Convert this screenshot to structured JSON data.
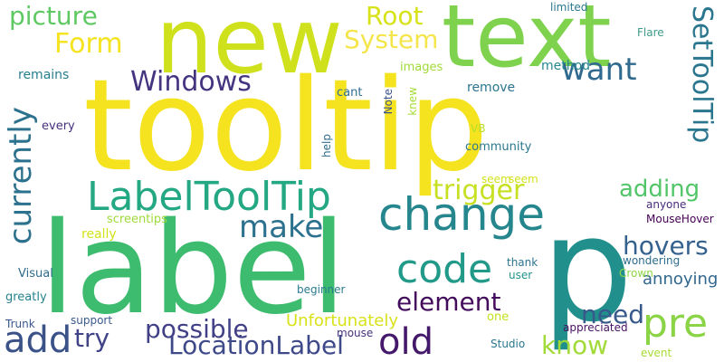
{
  "words": [
    {
      "text": "tooltip",
      "color": "#f5e31f",
      "vertical": false
    },
    {
      "text": "label",
      "color": "#3dbb6e",
      "vertical": false
    },
    {
      "text": "new",
      "color": "#cfe11c",
      "vertical": false
    },
    {
      "text": "text",
      "color": "#7ed24d",
      "vertical": false
    },
    {
      "text": "p",
      "color": "#21908d",
      "vertical": false
    },
    {
      "text": "change",
      "color": "#25878d",
      "vertical": false
    },
    {
      "text": "LabelToolTip",
      "color": "#23a883",
      "vertical": false
    },
    {
      "text": "code",
      "color": "#229a8a",
      "vertical": false
    },
    {
      "text": "pre",
      "color": "#8ad445",
      "vertical": false
    },
    {
      "text": "add",
      "color": "#3b5289",
      "vertical": false
    },
    {
      "text": "old",
      "color": "#44186b",
      "vertical": false
    },
    {
      "text": "want",
      "color": "#306a8e",
      "vertical": false
    },
    {
      "text": "Windows",
      "color": "#453581",
      "vertical": false
    },
    {
      "text": "Form",
      "color": "#f5e31f",
      "vertical": false
    },
    {
      "text": "picture",
      "color": "#5ec962",
      "vertical": false
    },
    {
      "text": "System",
      "color": "#f3e54a",
      "vertical": false
    },
    {
      "text": "Root",
      "color": "#d8e219",
      "vertical": false
    },
    {
      "text": "make",
      "color": "#2c728e",
      "vertical": false
    },
    {
      "text": "trigger",
      "color": "#c7e021",
      "vertical": false
    },
    {
      "text": "LocationLabel",
      "color": "#3e4989",
      "vertical": false
    },
    {
      "text": "possible",
      "color": "#424086",
      "vertical": false
    },
    {
      "text": "element",
      "color": "#440c5c",
      "vertical": false
    },
    {
      "text": "adding",
      "color": "#52c569",
      "vertical": false
    },
    {
      "text": "hovers",
      "color": "#34618d",
      "vertical": false
    },
    {
      "text": "need",
      "color": "#38598c",
      "vertical": false
    },
    {
      "text": "know",
      "color": "#a2da37",
      "vertical": false
    },
    {
      "text": "try",
      "color": "#414387",
      "vertical": false
    },
    {
      "text": "annoying",
      "color": "#31678e",
      "vertical": false
    },
    {
      "text": "SetToolTip",
      "color": "#2a768e",
      "vertical": true,
      "up": false
    },
    {
      "text": "currently",
      "color": "#2c718e",
      "vertical": true,
      "up": true
    },
    {
      "text": "Unfortunately",
      "color": "#d8e219",
      "vertical": false
    },
    {
      "text": "remains",
      "color": "#277f8e",
      "vertical": false
    },
    {
      "text": "remove",
      "color": "#2b748e",
      "vertical": false
    },
    {
      "text": "cant",
      "color": "#2e6e8e",
      "vertical": false
    },
    {
      "text": "images",
      "color": "#a0da39",
      "vertical": false
    },
    {
      "text": "every",
      "color": "#46307e",
      "vertical": false
    },
    {
      "text": "community",
      "color": "#2a778e",
      "vertical": false
    },
    {
      "text": "seem",
      "color": "#d2e21b",
      "vertical": false
    },
    {
      "text": "Flare",
      "color": "#3f9b89",
      "vertical": false
    },
    {
      "text": "limited",
      "color": "#2a788e",
      "vertical": false
    },
    {
      "text": "screentips",
      "color": "#9fda3a",
      "vertical": false
    },
    {
      "text": "really",
      "color": "#d2e21b",
      "vertical": false
    },
    {
      "text": "Visual",
      "color": "#2f6c8e",
      "vertical": false
    },
    {
      "text": "greatly",
      "color": "#26838e",
      "vertical": false
    },
    {
      "text": "support",
      "color": "#38598c",
      "vertical": false
    },
    {
      "text": "Trunk",
      "color": "#39568c",
      "vertical": false
    },
    {
      "text": "beginner",
      "color": "#297b8e",
      "vertical": false
    },
    {
      "text": "mouse",
      "color": "#46327e",
      "vertical": false
    },
    {
      "text": "Studio",
      "color": "#2a778e",
      "vertical": false
    },
    {
      "text": "one",
      "color": "#c5e021",
      "vertical": false
    },
    {
      "text": "thank",
      "color": "#2b758e",
      "vertical": false
    },
    {
      "text": "user",
      "color": "#20928c",
      "vertical": false
    },
    {
      "text": "wondering",
      "color": "#2e6d8e",
      "vertical": false
    },
    {
      "text": "Crown",
      "color": "#8ed645",
      "vertical": false
    },
    {
      "text": "MouseHover",
      "color": "#440154",
      "vertical": false
    },
    {
      "text": "anyone",
      "color": "#472c7a",
      "vertical": false
    },
    {
      "text": "event",
      "color": "#a8db34",
      "vertical": false
    },
    {
      "text": "appreciated",
      "color": "#471164",
      "vertical": false
    },
    {
      "text": "VB",
      "color": "#b6de2b",
      "vertical": false
    },
    {
      "text": "Note",
      "color": "#3b528b",
      "vertical": true,
      "up": true
    },
    {
      "text": "knew",
      "color": "#a5db36",
      "vertical": true,
      "up": true
    },
    {
      "text": "help",
      "color": "#2f6c8e",
      "vertical": true,
      "up": true
    },
    {
      "text": "seem",
      "color": "#d2e21b",
      "vertical": false
    },
    {
      "text": "method",
      "color": "#24878e",
      "vertical": false
    }
  ]
}
